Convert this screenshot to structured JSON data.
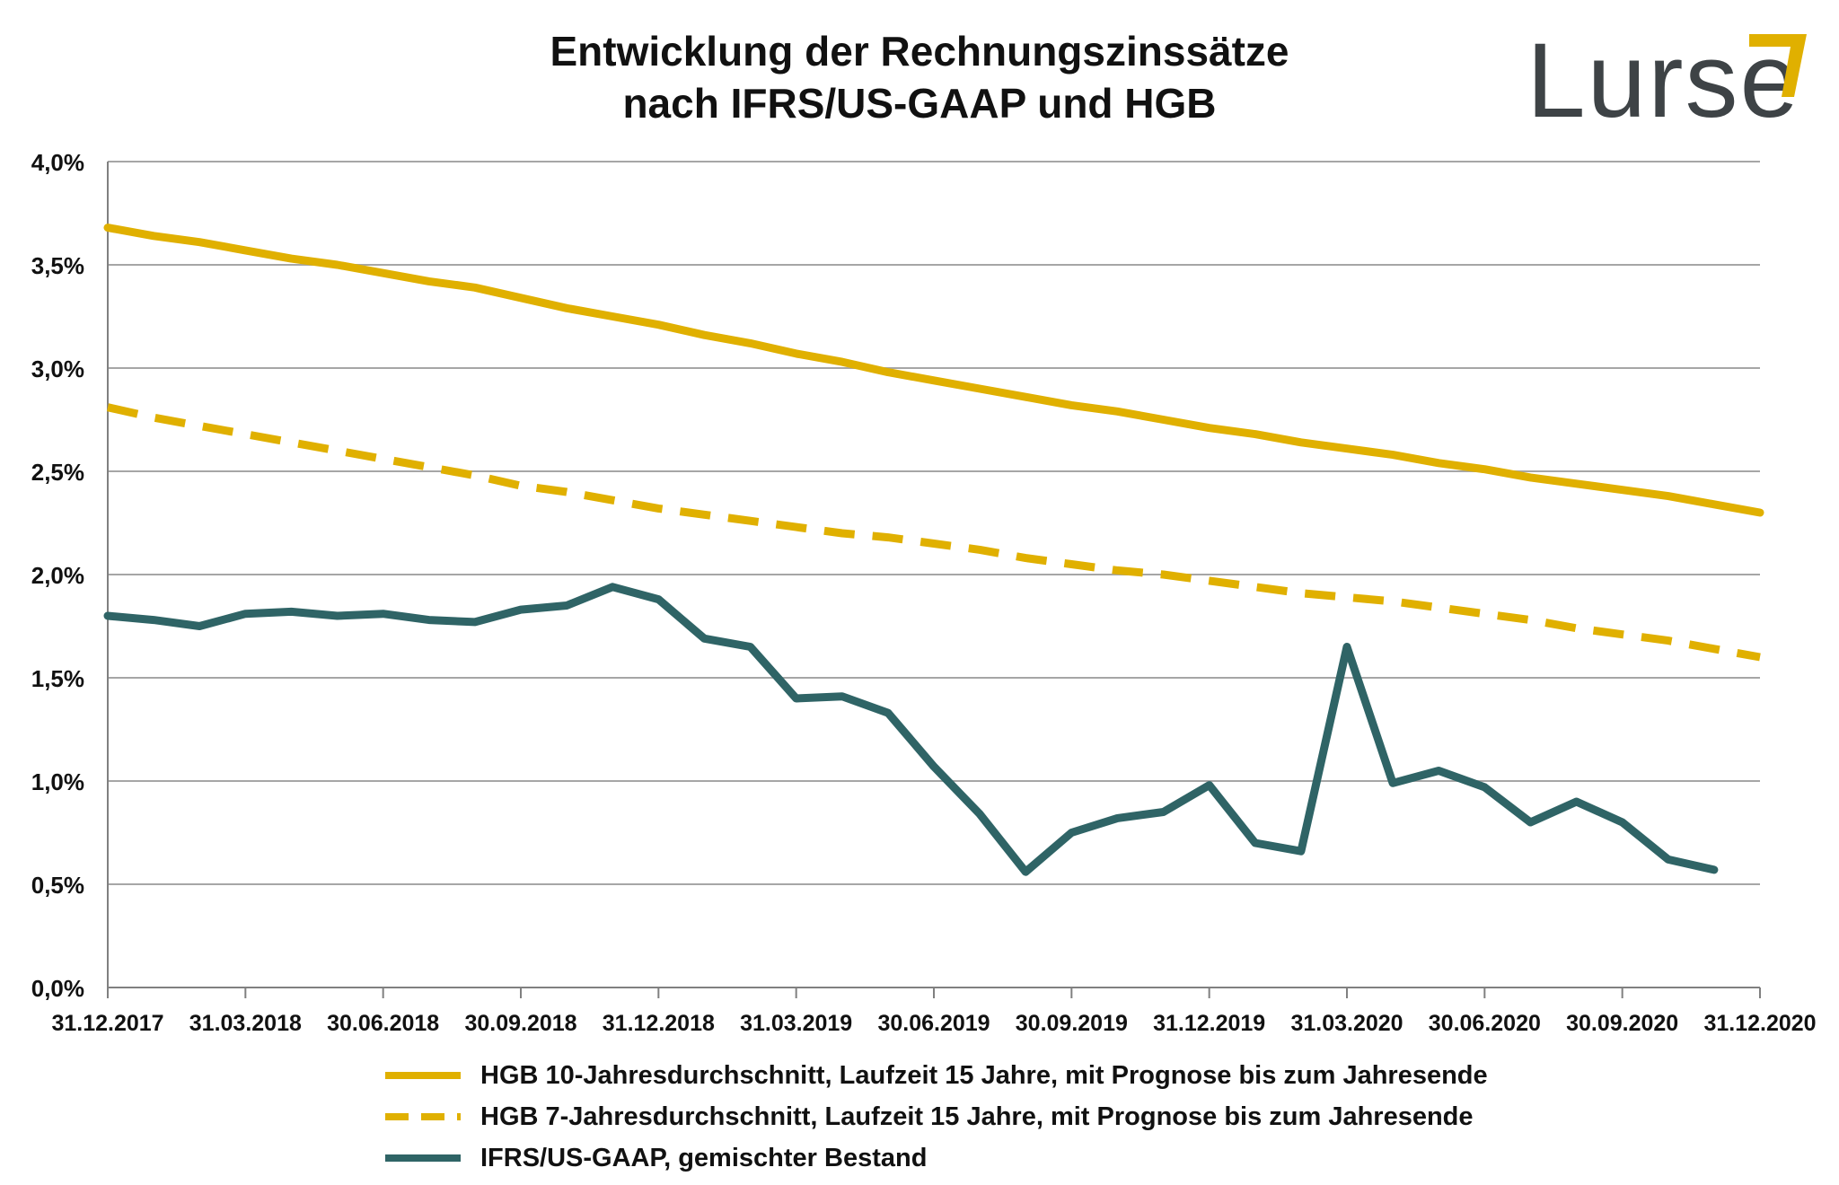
{
  "title": {
    "line1": "Entwicklung der Rechnungszinssätze",
    "line2": "nach IFRS/US-GAAP und HGB"
  },
  "logo": {
    "text": "Lurse"
  },
  "colors": {
    "gold": "#e0b000",
    "teal": "#2f6466",
    "grid": "#a6a6a6",
    "logo_gray": "#3e4346"
  },
  "chart_data": {
    "type": "line",
    "ylim": [
      0,
      4.0
    ],
    "y_ticks": [
      "0,0%",
      "0,5%",
      "1,0%",
      "1,5%",
      "2,0%",
      "2,5%",
      "3,0%",
      "3,5%",
      "4,0%"
    ],
    "y_tick_values": [
      0,
      0.5,
      1.0,
      1.5,
      2.0,
      2.5,
      3.0,
      3.5,
      4.0
    ],
    "x_labels": [
      "31.12.2017",
      "31.03.2018",
      "30.06.2018",
      "30.09.2018",
      "31.12.2018",
      "31.03.2019",
      "30.06.2019",
      "30.09.2019",
      "31.12.2019",
      "31.03.2020",
      "30.06.2020",
      "30.09.2020",
      "31.12.2020"
    ],
    "x_count": 37,
    "grid": true,
    "legend_position": "bottom",
    "series": [
      {
        "name": "HGB 10-Jahresdurchschnitt, Laufzeit 15 Jahre, mit Prognose bis zum Jahresende",
        "style": "solid",
        "color": "#e0b000",
        "values": [
          3.68,
          3.64,
          3.61,
          3.57,
          3.53,
          3.5,
          3.46,
          3.42,
          3.39,
          3.34,
          3.29,
          3.25,
          3.21,
          3.16,
          3.12,
          3.07,
          3.03,
          2.98,
          2.94,
          2.9,
          2.86,
          2.82,
          2.79,
          2.75,
          2.71,
          2.68,
          2.64,
          2.61,
          2.58,
          2.54,
          2.51,
          2.47,
          2.44,
          2.41,
          2.38,
          2.34,
          2.3
        ]
      },
      {
        "name": "HGB 7-Jahresdurchschnitt, Laufzeit 15 Jahre, mit Prognose bis zum Jahresende",
        "style": "dashed",
        "color": "#e0b000",
        "values": [
          2.81,
          2.76,
          2.72,
          2.68,
          2.64,
          2.6,
          2.56,
          2.52,
          2.48,
          2.43,
          2.4,
          2.36,
          2.32,
          2.29,
          2.26,
          2.23,
          2.2,
          2.18,
          2.15,
          2.12,
          2.08,
          2.05,
          2.02,
          2.0,
          1.97,
          1.94,
          1.91,
          1.89,
          1.87,
          1.84,
          1.81,
          1.78,
          1.74,
          1.71,
          1.68,
          1.64,
          1.6
        ]
      },
      {
        "name": "IFRS/US-GAAP, gemischter Bestand",
        "style": "solid",
        "color": "#2f6466",
        "values": [
          1.8,
          1.78,
          1.75,
          1.81,
          1.82,
          1.8,
          1.81,
          1.78,
          1.77,
          1.83,
          1.85,
          1.94,
          1.88,
          1.69,
          1.65,
          1.4,
          1.41,
          1.33,
          1.07,
          0.84,
          0.56,
          0.75,
          0.82,
          0.85,
          0.98,
          0.7,
          0.66,
          1.65,
          0.99,
          1.05,
          0.97,
          0.8,
          0.9,
          0.8,
          0.62,
          0.57,
          null
        ]
      }
    ]
  }
}
